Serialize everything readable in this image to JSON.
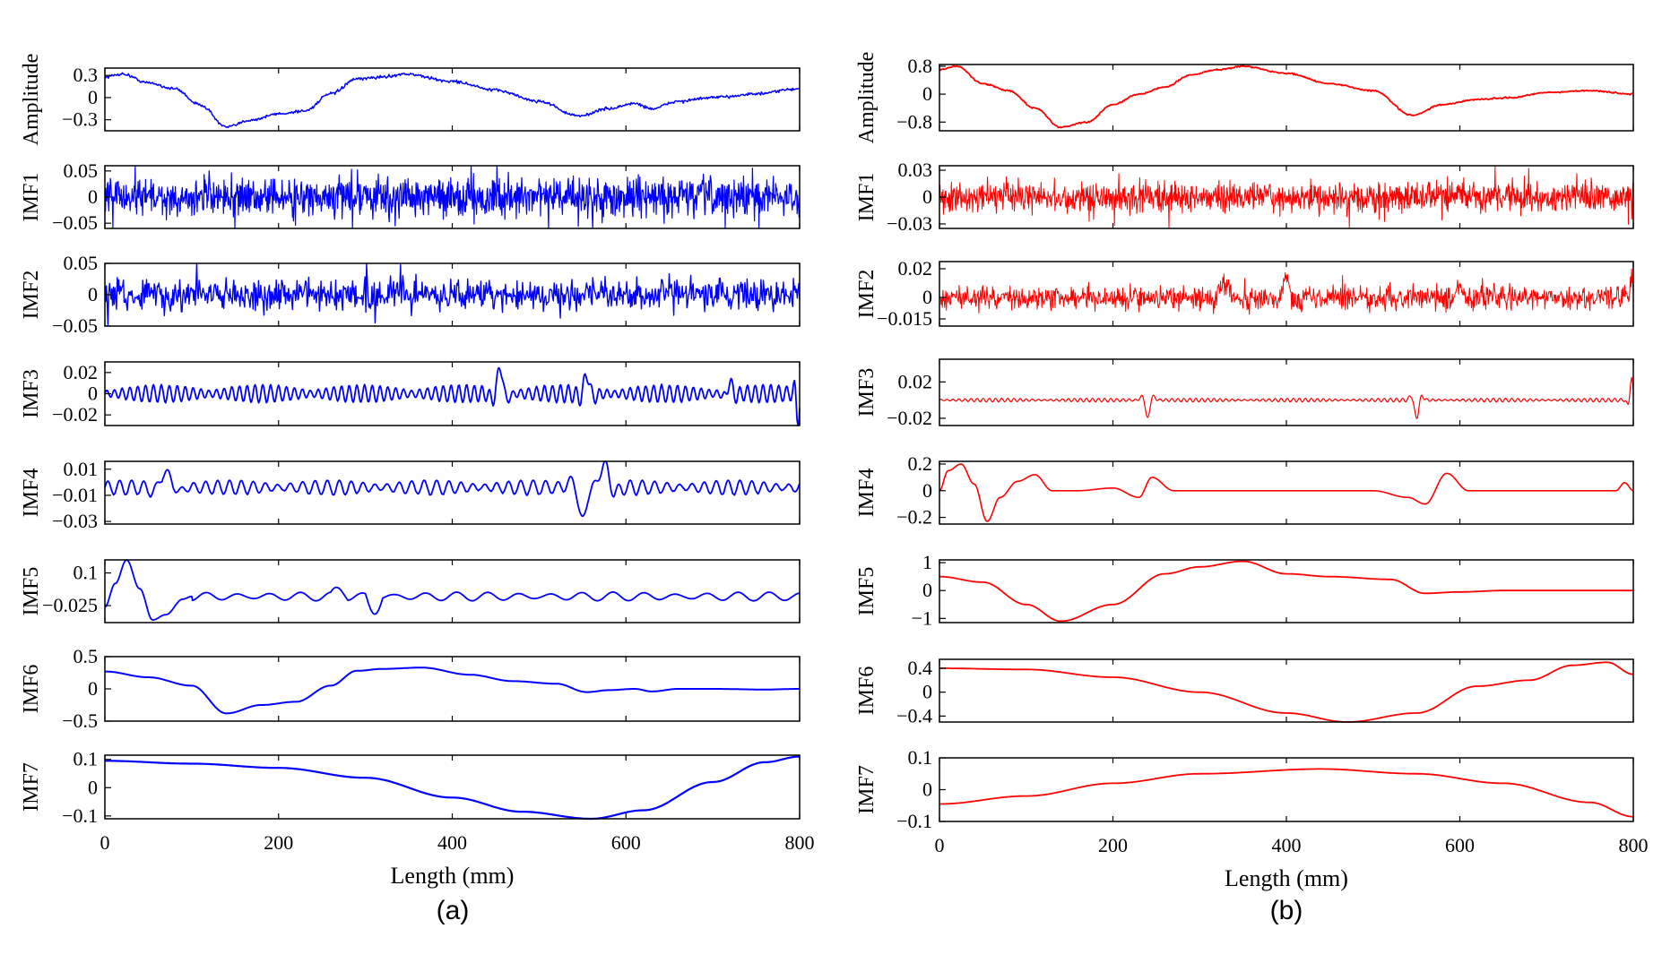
{
  "chart_data": [
    {
      "type": "line",
      "panel_label": "(a)",
      "color": "#0000ff",
      "xlabel": "Length (mm)",
      "xlim": [
        0,
        800
      ],
      "xticks": [
        "0",
        "200",
        "400",
        "600",
        "800"
      ],
      "subplots": [
        {
          "ylabel": "Amplitude",
          "yticks": [
            "0.3",
            "0",
            "−0.3"
          ],
          "yticks_v": [
            0.3,
            0,
            -0.3
          ],
          "ylim": [
            -0.45,
            0.4
          ],
          "kind": "smooth",
          "noise": 0.01,
          "lw": 1.5,
          "points": [
            [
              0,
              0.28
            ],
            [
              20,
              0.32
            ],
            [
              50,
              0.2
            ],
            [
              80,
              0.12
            ],
            [
              110,
              -0.1
            ],
            [
              140,
              -0.4
            ],
            [
              170,
              -0.3
            ],
            [
              200,
              -0.22
            ],
            [
              230,
              -0.18
            ],
            [
              260,
              0.05
            ],
            [
              290,
              0.25
            ],
            [
              320,
              0.28
            ],
            [
              345,
              0.32
            ],
            [
              400,
              0.22
            ],
            [
              450,
              0.1
            ],
            [
              500,
              -0.05
            ],
            [
              545,
              -0.25
            ],
            [
              580,
              -0.15
            ],
            [
              610,
              -0.08
            ],
            [
              630,
              -0.15
            ],
            [
              660,
              -0.05
            ],
            [
              700,
              0.0
            ],
            [
              750,
              0.05
            ],
            [
              800,
              0.12
            ]
          ]
        },
        {
          "ylabel": "IMF1",
          "yticks": [
            "0.05",
            "0",
            "−0.05"
          ],
          "yticks_v": [
            0.05,
            0,
            -0.05
          ],
          "ylim": [
            -0.06,
            0.06
          ],
          "kind": "noise",
          "amp": 0.018,
          "n": 1400,
          "lw": 1.2
        },
        {
          "ylabel": "IMF2",
          "yticks": [
            "0.05",
            "0",
            "−0.05"
          ],
          "yticks_v": [
            0.05,
            0,
            -0.05
          ],
          "ylim": [
            -0.05,
            0.05
          ],
          "kind": "noise",
          "amp": 0.012,
          "n": 900,
          "lw": 1.4
        },
        {
          "ylabel": "IMF3",
          "yticks": [
            "0.02",
            "0",
            "−0.02"
          ],
          "yticks_v": [
            0.02,
            0,
            -0.02
          ],
          "ylim": [
            -0.03,
            0.03
          ],
          "kind": "osc",
          "amp": 0.006,
          "period": 9,
          "lw": 1.8,
          "bursts": [
            [
              455,
              0.025,
              8
            ],
            [
              555,
              0.018,
              8
            ],
            [
              720,
              0.012,
              6
            ],
            [
              798,
              -0.028,
              4
            ]
          ]
        },
        {
          "ylabel": "IMF4",
          "yticks": [
            "0.01",
            "−0.01",
            "−0.03"
          ],
          "yticks_v": [
            0.01,
            -0.01,
            -0.03
          ],
          "ylim": [
            -0.032,
            0.016
          ],
          "kind": "osc",
          "amp": 0.004,
          "period": 14,
          "lw": 1.8,
          "offset": -0.004,
          "bursts": [
            [
              70,
              0.012,
              14
            ],
            [
              550,
              -0.024,
              12
            ],
            [
              575,
              0.018,
              12
            ]
          ]
        },
        {
          "ylabel": "IMF5",
          "yticks": [
            "0.1",
            "−0.025"
          ],
          "yticks_v": [
            0.1,
            -0.025
          ],
          "ylim": [
            -0.09,
            0.15
          ],
          "kind": "smooth_osc",
          "amp": 0.012,
          "period": 36,
          "offset": 0.01,
          "lw": 1.8,
          "points": [
            [
              0,
              -0.03
            ],
            [
              12,
              0.06
            ],
            [
              25,
              0.15
            ],
            [
              40,
              0.04
            ],
            [
              55,
              -0.08
            ],
            [
              70,
              -0.06
            ],
            [
              90,
              0.0
            ],
            [
              100,
              0.01
            ]
          ]
        },
        {
          "ylabel": "IMF6",
          "yticks": [
            "0.5",
            "0",
            "−0.5"
          ],
          "yticks_v": [
            0.5,
            0,
            -0.5
          ],
          "ylim": [
            -0.5,
            0.5
          ],
          "kind": "smooth",
          "lw": 2,
          "points": [
            [
              0,
              0.27
            ],
            [
              50,
              0.18
            ],
            [
              100,
              0.05
            ],
            [
              140,
              -0.38
            ],
            [
              180,
              -0.25
            ],
            [
              220,
              -0.2
            ],
            [
              260,
              0.05
            ],
            [
              290,
              0.28
            ],
            [
              320,
              0.31
            ],
            [
              365,
              0.33
            ],
            [
              420,
              0.22
            ],
            [
              470,
              0.12
            ],
            [
              520,
              0.08
            ],
            [
              555,
              -0.05
            ],
            [
              580,
              -0.02
            ],
            [
              610,
              0.0
            ],
            [
              630,
              -0.04
            ],
            [
              660,
              0.0
            ],
            [
              700,
              0.0
            ],
            [
              760,
              -0.01
            ],
            [
              800,
              0.0
            ]
          ]
        },
        {
          "ylabel": "IMF7",
          "yticks": [
            "0.1",
            "0",
            "−0.1"
          ],
          "yticks_v": [
            0.1,
            0,
            -0.1
          ],
          "ylim": [
            -0.11,
            0.115
          ],
          "kind": "smooth",
          "lw": 2.2,
          "points": [
            [
              0,
              0.095
            ],
            [
              100,
              0.085
            ],
            [
              200,
              0.07
            ],
            [
              300,
              0.035
            ],
            [
              400,
              -0.035
            ],
            [
              480,
              -0.085
            ],
            [
              560,
              -0.11
            ],
            [
              620,
              -0.08
            ],
            [
              700,
              0.02
            ],
            [
              760,
              0.09
            ],
            [
              800,
              0.11
            ]
          ]
        }
      ]
    },
    {
      "type": "line",
      "panel_label": "(b)",
      "color": "#ff0000",
      "xlabel": "Length (mm)",
      "xlim": [
        0,
        800
      ],
      "xticks": [
        "0",
        "200",
        "400",
        "600",
        "800"
      ],
      "subplots": [
        {
          "ylabel": "Amplitude",
          "yticks": [
            "0.8",
            "0",
            "−0.8"
          ],
          "yticks_v": [
            0.8,
            0,
            -0.8
          ],
          "ylim": [
            -1.05,
            0.85
          ],
          "kind": "smooth",
          "noise": 0.01,
          "lw": 1.8,
          "points": [
            [
              0,
              0.7
            ],
            [
              20,
              0.8
            ],
            [
              50,
              0.3
            ],
            [
              80,
              0.1
            ],
            [
              110,
              -0.4
            ],
            [
              140,
              -0.95
            ],
            [
              170,
              -0.8
            ],
            [
              200,
              -0.3
            ],
            [
              230,
              0.0
            ],
            [
              260,
              0.2
            ],
            [
              290,
              0.55
            ],
            [
              320,
              0.7
            ],
            [
              350,
              0.8
            ],
            [
              400,
              0.6
            ],
            [
              450,
              0.3
            ],
            [
              500,
              0.1
            ],
            [
              545,
              -0.6
            ],
            [
              580,
              -0.3
            ],
            [
              620,
              -0.15
            ],
            [
              660,
              -0.1
            ],
            [
              700,
              0.05
            ],
            [
              750,
              0.1
            ],
            [
              800,
              0.0
            ]
          ]
        },
        {
          "ylabel": "IMF1",
          "yticks": [
            "0.03",
            "0",
            "−0.03"
          ],
          "yticks_v": [
            0.03,
            0,
            -0.03
          ],
          "ylim": [
            -0.035,
            0.035
          ],
          "kind": "noise",
          "amp": 0.008,
          "n": 1400,
          "lw": 1.0
        },
        {
          "ylabel": "IMF2",
          "yticks": [
            "0.02",
            "0",
            "−0.015"
          ],
          "yticks_v": [
            0.02,
            0,
            -0.015
          ],
          "ylim": [
            -0.02,
            0.025
          ],
          "kind": "noise",
          "amp": 0.004,
          "n": 1200,
          "lw": 1.0,
          "bursts": [
            [
              330,
              0.012,
              14
            ],
            [
              400,
              0.012,
              10
            ],
            [
              600,
              0.008,
              10
            ],
            [
              798,
              0.018,
              3
            ]
          ]
        },
        {
          "ylabel": "IMF3",
          "yticks": [
            "0.02",
            "−0.02"
          ],
          "yticks_v": [
            0.02,
            -0.02
          ],
          "ylim": [
            -0.028,
            0.045
          ],
          "kind": "osc",
          "amp": 0.0015,
          "period": 7,
          "lw": 1.2,
          "bursts": [
            [
              240,
              -0.02,
              6
            ],
            [
              550,
              -0.02,
              6
            ],
            [
              798,
              0.025,
              4
            ]
          ]
        },
        {
          "ylabel": "IMF4",
          "yticks": [
            "0.2",
            "0",
            "−0.2"
          ],
          "yticks_v": [
            0.2,
            0,
            -0.2
          ],
          "ylim": [
            -0.25,
            0.22
          ],
          "kind": "smooth",
          "lw": 1.6,
          "points": [
            [
              0,
              0.0
            ],
            [
              10,
              0.15
            ],
            [
              25,
              0.2
            ],
            [
              40,
              0.05
            ],
            [
              55,
              -0.23
            ],
            [
              70,
              -0.05
            ],
            [
              90,
              0.07
            ],
            [
              110,
              0.12
            ],
            [
              130,
              0.0
            ],
            [
              160,
              0.0
            ],
            [
              200,
              0.02
            ],
            [
              230,
              -0.05
            ],
            [
              245,
              0.1
            ],
            [
              270,
              0.0
            ],
            [
              500,
              0.0
            ],
            [
              540,
              -0.05
            ],
            [
              560,
              -0.1
            ],
            [
              585,
              0.13
            ],
            [
              610,
              0.0
            ],
            [
              650,
              0.0
            ],
            [
              780,
              0.0
            ],
            [
              790,
              0.06
            ],
            [
              800,
              0.0
            ]
          ]
        },
        {
          "ylabel": "IMF5",
          "yticks": [
            "1",
            "0",
            "−1"
          ],
          "yticks_v": [
            1,
            0,
            -1
          ],
          "ylim": [
            -1.15,
            1.1
          ],
          "kind": "smooth",
          "lw": 1.8,
          "points": [
            [
              0,
              0.5
            ],
            [
              50,
              0.3
            ],
            [
              100,
              -0.5
            ],
            [
              140,
              -1.1
            ],
            [
              200,
              -0.5
            ],
            [
              260,
              0.6
            ],
            [
              300,
              0.85
            ],
            [
              350,
              1.05
            ],
            [
              400,
              0.6
            ],
            [
              450,
              0.5
            ],
            [
              520,
              0.4
            ],
            [
              560,
              -0.1
            ],
            [
              600,
              -0.05
            ],
            [
              650,
              0.0
            ],
            [
              700,
              0.0
            ],
            [
              760,
              0.0
            ],
            [
              800,
              0.0
            ]
          ]
        },
        {
          "ylabel": "IMF6",
          "yticks": [
            "0.4",
            "0",
            "−0.4"
          ],
          "yticks_v": [
            0.4,
            0,
            -0.4
          ],
          "ylim": [
            -0.5,
            0.55
          ],
          "kind": "smooth",
          "lw": 1.8,
          "points": [
            [
              0,
              0.4
            ],
            [
              100,
              0.38
            ],
            [
              200,
              0.25
            ],
            [
              300,
              0.0
            ],
            [
              400,
              -0.35
            ],
            [
              470,
              -0.5
            ],
            [
              550,
              -0.35
            ],
            [
              620,
              0.1
            ],
            [
              680,
              0.2
            ],
            [
              730,
              0.45
            ],
            [
              770,
              0.5
            ],
            [
              800,
              0.3
            ]
          ]
        },
        {
          "ylabel": "IMF7",
          "yticks": [
            "0.1",
            "0",
            "−0.1"
          ],
          "yticks_v": [
            0.1,
            0,
            -0.1
          ],
          "ylim": [
            -0.1,
            0.1
          ],
          "kind": "smooth",
          "lw": 1.8,
          "points": [
            [
              0,
              -0.045
            ],
            [
              100,
              -0.02
            ],
            [
              200,
              0.02
            ],
            [
              300,
              0.05
            ],
            [
              440,
              0.065
            ],
            [
              550,
              0.05
            ],
            [
              650,
              0.02
            ],
            [
              750,
              -0.04
            ],
            [
              800,
              -0.085
            ]
          ]
        }
      ]
    }
  ]
}
